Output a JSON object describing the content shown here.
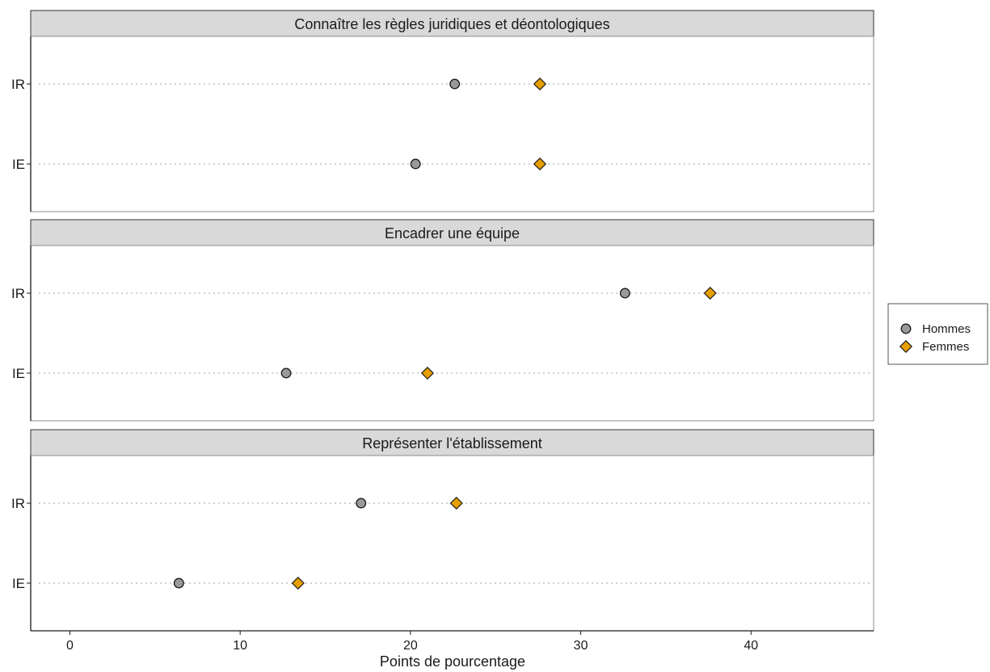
{
  "chart_data": {
    "type": "scatter",
    "subtype": "dot-plot-facetted",
    "xlabel": "Points de pourcentage",
    "xlim": [
      -2.3,
      47.2
    ],
    "xticks": [
      0,
      10,
      20,
      30,
      40
    ],
    "tick_labels": [
      "0",
      "10",
      "20",
      "30",
      "40"
    ],
    "categories": [
      "IR",
      "IE"
    ],
    "legend": {
      "position": "right",
      "entries": [
        {
          "name": "Hommes",
          "shape": "circle",
          "color": "#999999"
        },
        {
          "name": "Femmes",
          "shape": "diamond",
          "color": "#E69F00"
        }
      ]
    },
    "grid": "dotted horizontal lines at categories",
    "panels": [
      {
        "title": "Connaître les règles juridiques et déontologiques",
        "rows": [
          {
            "category": "IR",
            "Hommes": 22.6,
            "Femmes": 27.6
          },
          {
            "category": "IE",
            "Hommes": 20.3,
            "Femmes": 27.6
          }
        ]
      },
      {
        "title": "Encadrer une équipe",
        "rows": [
          {
            "category": "IR",
            "Hommes": 32.6,
            "Femmes": 37.6
          },
          {
            "category": "IE",
            "Hommes": 12.7,
            "Femmes": 21.0
          }
        ]
      },
      {
        "title": "Représenter l'établissement",
        "rows": [
          {
            "category": "IR",
            "Hommes": 17.1,
            "Femmes": 22.7
          },
          {
            "category": "IE",
            "Hommes": 6.4,
            "Femmes": 13.4
          }
        ]
      }
    ]
  }
}
